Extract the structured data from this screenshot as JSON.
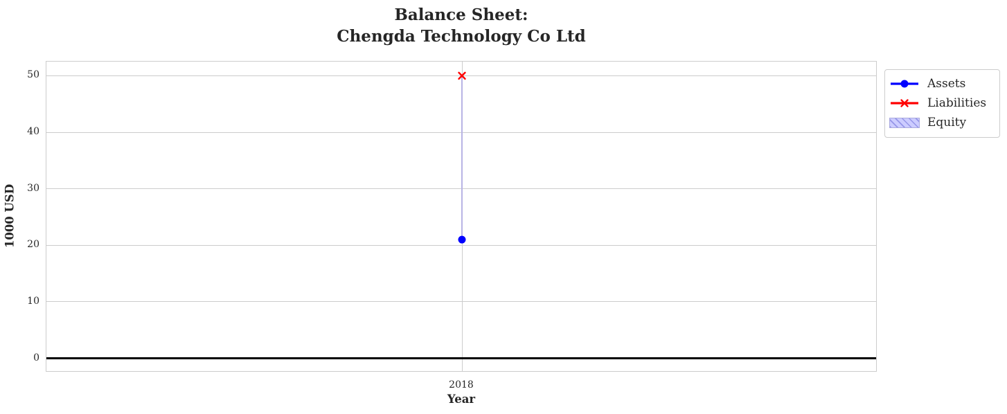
{
  "chart_data": {
    "type": "line",
    "title": "Balance Sheet:\nChengda Technology Co Ltd",
    "title_lines": [
      "Balance Sheet:",
      "Chengda Technology Co Ltd"
    ],
    "xlabel": "Year",
    "ylabel": "1000 USD",
    "x_labels": [
      "2018"
    ],
    "series": [
      {
        "name": "Assets",
        "type": "line",
        "marker": "circle",
        "color": "#0000ff",
        "values": [
          21
        ]
      },
      {
        "name": "Liabilities",
        "type": "line",
        "marker": "x",
        "color": "#ff0000",
        "values": [
          50
        ]
      },
      {
        "name": "Equity",
        "type": "bar",
        "hatch": "///",
        "fill_color": "#ccccff",
        "hatch_color": "#9595e8",
        "bar_color": "#b8b4e4",
        "values": [
          -29
        ],
        "bar_span": [
          21,
          50
        ]
      }
    ],
    "yticks": [
      0,
      10,
      20,
      30,
      40,
      50
    ],
    "ylim": [
      -2.5,
      52.5
    ],
    "grid": true,
    "grid_color": "#cccccc",
    "zero_line_color": "#000000",
    "text_color": "#262626",
    "legend": {
      "position": "outside-upper-right",
      "entries": [
        "Assets",
        "Liabilities",
        "Equity"
      ]
    }
  }
}
